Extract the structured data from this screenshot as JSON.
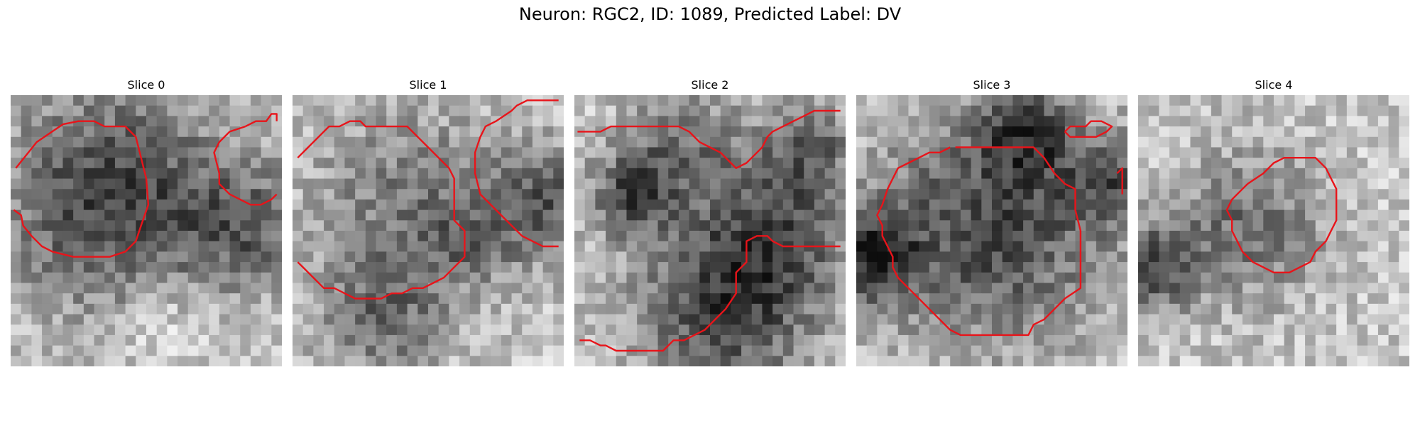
{
  "figure": {
    "title": "Neuron: RGC2, ID: 1089, Predicted Label: DV",
    "contour_color": "#e8141a"
  },
  "slices": [
    {
      "label": "Slice 0",
      "seed": 11,
      "blobs": [
        [
          9.5,
          9.5,
          7.5,
          0.55
        ],
        [
          22.5,
          12,
          4,
          0.35
        ],
        [
          14,
          21,
          3,
          -0.15
        ]
      ]
    },
    {
      "label": "Slice 1",
      "seed": 23,
      "blobs": [
        [
          10.5,
          9.5,
          6.5,
          0.3
        ],
        [
          24,
          10,
          4,
          0.4
        ],
        [
          8,
          21,
          4,
          0.35
        ],
        [
          16,
          14,
          3,
          0.2
        ]
      ]
    },
    {
      "label": "Slice 2",
      "seed": 37,
      "blobs": [
        [
          5,
          9,
          3,
          0.45
        ],
        [
          14,
          20,
          6,
          0.5
        ],
        [
          19,
          12,
          5,
          0.4
        ],
        [
          22,
          4,
          3,
          0.35
        ],
        [
          10,
          4,
          4,
          0.3
        ]
      ]
    },
    {
      "label": "Slice 3",
      "seed": 51,
      "blobs": [
        [
          12.5,
          12,
          8,
          0.5
        ],
        [
          1,
          15,
          3,
          0.55
        ],
        [
          16,
          3,
          3,
          0.4
        ],
        [
          24,
          8,
          3,
          0.35
        ]
      ]
    },
    {
      "label": "Slice 4",
      "seed": 67,
      "blobs": [
        [
          10,
          12,
          5,
          0.35
        ],
        [
          1,
          16,
          3,
          0.45
        ]
      ]
    }
  ],
  "contours": [
    [
      [
        [
          0.5,
          7
        ],
        [
          2.5,
          4.5
        ],
        [
          5,
          2.8
        ],
        [
          6.5,
          2.5
        ],
        [
          8,
          2.5
        ],
        [
          9,
          3
        ],
        [
          11,
          3
        ],
        [
          12,
          4
        ],
        [
          12.5,
          6
        ],
        [
          13,
          8
        ],
        [
          13.2,
          10.5
        ],
        [
          12.5,
          12.5
        ],
        [
          12,
          14
        ],
        [
          11,
          15
        ],
        [
          9.5,
          15.5
        ],
        [
          7.5,
          15.5
        ],
        [
          6,
          15.5
        ],
        [
          4,
          15
        ],
        [
          3,
          14.5
        ],
        [
          2,
          13.5
        ],
        [
          1.2,
          12.5
        ],
        [
          1,
          11.5
        ],
        [
          0.3,
          11
        ]
      ],
      [
        [
          22.5,
          3
        ],
        [
          23.5,
          2.5
        ],
        [
          24.5,
          2.5
        ],
        [
          25,
          1.8
        ],
        [
          25.5,
          1.8
        ],
        [
          25.5,
          2.5
        ]
      ],
      [
        [
          22.5,
          3
        ],
        [
          21,
          3.5
        ],
        [
          20,
          4.5
        ],
        [
          19.5,
          5.5
        ],
        [
          20,
          7.5
        ],
        [
          20,
          8.5
        ],
        [
          21,
          9.5
        ],
        [
          22,
          10
        ],
        [
          23,
          10.5
        ],
        [
          24,
          10.5
        ],
        [
          25,
          10
        ],
        [
          25.5,
          9.5
        ]
      ]
    ],
    [
      [
        [
          0.5,
          6
        ],
        [
          1.5,
          5
        ],
        [
          2.5,
          4
        ],
        [
          3.5,
          3
        ],
        [
          4.5,
          3
        ],
        [
          5.5,
          2.5
        ],
        [
          6.5,
          2.5
        ],
        [
          7,
          3
        ],
        [
          8,
          3
        ],
        [
          9,
          3
        ],
        [
          10,
          3
        ],
        [
          11,
          3
        ],
        [
          12,
          4
        ],
        [
          13,
          5
        ],
        [
          14,
          6
        ],
        [
          15,
          7
        ],
        [
          15.5,
          8
        ],
        [
          15.5,
          10
        ],
        [
          15.5,
          12
        ],
        [
          16.5,
          13
        ],
        [
          16.5,
          14
        ],
        [
          16.5,
          15.5
        ],
        [
          15.5,
          16.5
        ],
        [
          14.5,
          17.5
        ],
        [
          13.5,
          18
        ],
        [
          12.5,
          18.5
        ],
        [
          11.5,
          18.5
        ],
        [
          10.5,
          19
        ],
        [
          9.5,
          19
        ],
        [
          8.5,
          19.5
        ],
        [
          7.5,
          19.5
        ],
        [
          6,
          19.5
        ],
        [
          5,
          19
        ],
        [
          4,
          18.5
        ],
        [
          3,
          18.5
        ],
        [
          2,
          17.5
        ],
        [
          1,
          16.5
        ],
        [
          0.5,
          16
        ]
      ],
      [
        [
          25.5,
          0.5
        ],
        [
          24,
          0.5
        ],
        [
          22.5,
          0.5
        ],
        [
          21.5,
          1
        ],
        [
          21,
          1.5
        ],
        [
          19.5,
          2.5
        ],
        [
          18.5,
          3
        ],
        [
          18,
          4
        ],
        [
          17.5,
          5.5
        ],
        [
          17.5,
          7.5
        ],
        [
          18,
          9.5
        ],
        [
          19,
          10.5
        ],
        [
          20,
          11.5
        ],
        [
          21,
          12.5
        ],
        [
          22,
          13.5
        ],
        [
          23,
          14
        ],
        [
          24,
          14.5
        ],
        [
          25.5,
          14.5
        ]
      ]
    ],
    [
      [
        [
          0.3,
          3.5
        ],
        [
          2.5,
          3.5
        ],
        [
          3.5,
          3
        ],
        [
          4.5,
          3
        ],
        [
          6,
          3
        ],
        [
          8,
          3
        ],
        [
          10,
          3
        ],
        [
          11,
          3.5
        ],
        [
          12,
          4.5
        ],
        [
          13,
          5
        ],
        [
          14,
          5.5
        ],
        [
          15,
          6.5
        ],
        [
          15.5,
          7
        ],
        [
          16.5,
          6.5
        ],
        [
          17,
          6
        ],
        [
          18,
          5
        ],
        [
          18.5,
          4
        ],
        [
          19,
          3.5
        ],
        [
          20,
          3
        ],
        [
          21,
          2.5
        ],
        [
          22,
          2
        ],
        [
          23,
          1.5
        ],
        [
          24,
          1.5
        ],
        [
          25.5,
          1.5
        ]
      ],
      [
        [
          25.5,
          14.5
        ],
        [
          24,
          14.5
        ],
        [
          22,
          14.5
        ],
        [
          20,
          14.5
        ],
        [
          19,
          14
        ],
        [
          18.5,
          13.5
        ],
        [
          17.5,
          13.5
        ],
        [
          16.5,
          14
        ],
        [
          16.5,
          16
        ],
        [
          15.5,
          17
        ],
        [
          15.5,
          19
        ],
        [
          14.5,
          20.5
        ],
        [
          13.5,
          21.5
        ],
        [
          12.5,
          22.5
        ],
        [
          11.5,
          23
        ],
        [
          10.5,
          23.5
        ],
        [
          9.5,
          23.5
        ],
        [
          8.5,
          24.5
        ],
        [
          6,
          24.5
        ],
        [
          4,
          24.5
        ],
        [
          3,
          24
        ],
        [
          2.5,
          24
        ],
        [
          1.5,
          23.5
        ],
        [
          0.5,
          23.5
        ]
      ]
    ],
    [
      [
        [
          20,
          3.5
        ],
        [
          20.5,
          3
        ],
        [
          22,
          3
        ],
        [
          22.5,
          2.5
        ],
        [
          23.5,
          2.5
        ],
        [
          24.5,
          3
        ],
        [
          24,
          3.5
        ],
        [
          23,
          4
        ],
        [
          21.5,
          4
        ],
        [
          20.5,
          4
        ],
        [
          20,
          3.5
        ]
      ],
      [
        [
          25,
          7.5
        ],
        [
          25.5,
          7
        ],
        [
          25.5,
          9.5
        ]
      ],
      [
        [
          9.5,
          5
        ],
        [
          11,
          5
        ],
        [
          13,
          5
        ],
        [
          15,
          5
        ],
        [
          17,
          5
        ],
        [
          18,
          6
        ],
        [
          19,
          7.5
        ],
        [
          20,
          8.5
        ],
        [
          21,
          9
        ],
        [
          21,
          11
        ],
        [
          21.5,
          13
        ],
        [
          21.5,
          15
        ],
        [
          21.5,
          17
        ],
        [
          21.5,
          18.5
        ],
        [
          20,
          19.5
        ],
        [
          19,
          20.5
        ],
        [
          18,
          21.5
        ],
        [
          17,
          22
        ],
        [
          16.5,
          23
        ],
        [
          15,
          23
        ],
        [
          13,
          23
        ],
        [
          11,
          23
        ],
        [
          10,
          23
        ],
        [
          9,
          22.5
        ],
        [
          8,
          21.5
        ],
        [
          7,
          20.5
        ],
        [
          6,
          19.5
        ],
        [
          5,
          18.5
        ],
        [
          4,
          17.5
        ],
        [
          3.5,
          16.5
        ],
        [
          3.5,
          15.5
        ],
        [
          3,
          14.5
        ],
        [
          2.5,
          13.5
        ],
        [
          2.5,
          12.5
        ],
        [
          2,
          11.5
        ],
        [
          2.5,
          10.5
        ],
        [
          3,
          9
        ],
        [
          3.5,
          8
        ],
        [
          4,
          7
        ],
        [
          5,
          6.5
        ],
        [
          6,
          6
        ],
        [
          7,
          5.5
        ],
        [
          8,
          5.5
        ],
        [
          9,
          5
        ]
      ]
    ],
    [
      [
        [
          10.5,
          8.5
        ],
        [
          12,
          7.5
        ],
        [
          13,
          6.5
        ],
        [
          14,
          6
        ],
        [
          15,
          6
        ],
        [
          16,
          6
        ],
        [
          17,
          6
        ],
        [
          18,
          7
        ],
        [
          18.5,
          8
        ],
        [
          19,
          9
        ],
        [
          19,
          10.5
        ],
        [
          19,
          12
        ],
        [
          18.5,
          13
        ],
        [
          18,
          14
        ],
        [
          17,
          15
        ],
        [
          16.5,
          16
        ],
        [
          15.5,
          16.5
        ],
        [
          14.5,
          17
        ],
        [
          13,
          17
        ],
        [
          12,
          16.5
        ],
        [
          11,
          16
        ],
        [
          10,
          15
        ],
        [
          9.5,
          14
        ],
        [
          9,
          13
        ],
        [
          9,
          12
        ],
        [
          8.5,
          11
        ],
        [
          9,
          10
        ],
        [
          10,
          9
        ],
        [
          10.5,
          8.5
        ]
      ]
    ]
  ]
}
